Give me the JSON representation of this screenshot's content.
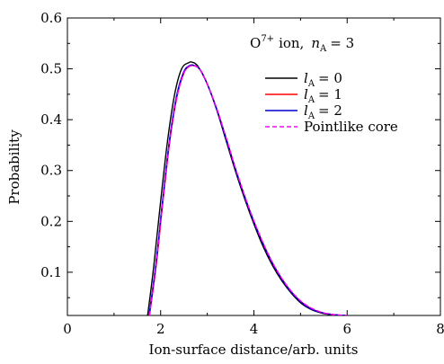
{
  "chart_data": {
    "type": "line",
    "title": "",
    "annotation": {
      "ion": "O",
      "charge": "7+",
      "ion_word": "ion,",
      "n_symbol": "n",
      "n_sub": "A",
      "n_eq": "= 3"
    },
    "xlabel": "Ion-surface distance/arb. units",
    "ylabel": "Probability",
    "xlim": [
      0,
      8
    ],
    "ylim": [
      0.015,
      0.6
    ],
    "x_ticks": [
      0,
      2,
      4,
      6,
      8
    ],
    "x_tick_labels": [
      "0",
      "2",
      "4",
      "6",
      "8"
    ],
    "y_ticks": [
      0.1,
      0.2,
      0.3,
      0.4,
      0.5,
      0.6
    ],
    "y_tick_labels": [
      "0.1",
      "0.2",
      "0.3",
      "0.4",
      "0.5",
      "0.6"
    ],
    "grid": false,
    "legend_position": "top-right",
    "series": [
      {
        "name": "l_A = 0",
        "label_sym": "l",
        "label_sub": "A",
        "label_val": "= 0",
        "color": "#000000",
        "dash": "solid",
        "x": [
          1.72,
          1.85,
          2.0,
          2.15,
          2.3,
          2.45,
          2.6,
          2.68,
          2.8,
          3.0,
          3.2,
          3.4,
          3.6,
          3.8,
          4.0,
          4.2,
          4.4,
          4.6,
          4.8,
          5.0,
          5.2,
          5.4,
          5.6,
          5.8,
          6.0
        ],
        "y": [
          0.015,
          0.11,
          0.24,
          0.36,
          0.45,
          0.5,
          0.512,
          0.513,
          0.505,
          0.47,
          0.42,
          0.36,
          0.3,
          0.245,
          0.195,
          0.15,
          0.113,
          0.083,
          0.059,
          0.04,
          0.028,
          0.021,
          0.017,
          0.015,
          0.015
        ]
      },
      {
        "name": "l_A = 1",
        "label_sym": "l",
        "label_sub": "A",
        "label_val": "= 1",
        "color": "#ff0000",
        "dash": "solid",
        "x": [
          1.76,
          1.9,
          2.05,
          2.2,
          2.35,
          2.5,
          2.62,
          2.72,
          2.85,
          3.0,
          3.2,
          3.4,
          3.6,
          3.8,
          4.0,
          4.2,
          4.4,
          4.6,
          4.8,
          5.0,
          5.2,
          5.4,
          5.6,
          5.8,
          6.0
        ],
        "y": [
          0.015,
          0.11,
          0.24,
          0.36,
          0.445,
          0.492,
          0.505,
          0.506,
          0.498,
          0.47,
          0.422,
          0.365,
          0.305,
          0.25,
          0.2,
          0.156,
          0.118,
          0.087,
          0.062,
          0.043,
          0.03,
          0.022,
          0.018,
          0.016,
          0.015
        ]
      },
      {
        "name": "l_A = 2",
        "label_sym": "l",
        "label_sub": "A",
        "label_val": "= 2",
        "color": "#0000cc",
        "dash": "solid",
        "x": [
          1.75,
          1.89,
          2.04,
          2.19,
          2.34,
          2.49,
          2.61,
          2.71,
          2.84,
          3.0,
          3.2,
          3.4,
          3.6,
          3.8,
          4.0,
          4.2,
          4.4,
          4.6,
          4.8,
          5.0,
          5.2,
          5.4,
          5.6,
          5.8,
          6.0
        ],
        "y": [
          0.015,
          0.11,
          0.24,
          0.36,
          0.446,
          0.493,
          0.506,
          0.507,
          0.499,
          0.47,
          0.421,
          0.364,
          0.304,
          0.249,
          0.199,
          0.155,
          0.117,
          0.086,
          0.061,
          0.042,
          0.029,
          0.022,
          0.018,
          0.016,
          0.015
        ]
      },
      {
        "name": "Pointlike core",
        "label_text": "Pointlike core",
        "color": "#ff00ff",
        "dash": "dashed",
        "x": [
          1.76,
          1.9,
          2.05,
          2.2,
          2.35,
          2.5,
          2.62,
          2.72,
          2.85,
          3.0,
          3.2,
          3.4,
          3.6,
          3.8,
          4.0,
          4.2,
          4.4,
          4.6,
          4.8,
          5.0,
          5.2,
          5.4,
          5.6,
          5.8,
          6.0
        ],
        "y": [
          0.015,
          0.11,
          0.24,
          0.36,
          0.445,
          0.492,
          0.505,
          0.506,
          0.498,
          0.47,
          0.423,
          0.366,
          0.306,
          0.251,
          0.201,
          0.157,
          0.119,
          0.088,
          0.063,
          0.044,
          0.031,
          0.023,
          0.018,
          0.016,
          0.015
        ]
      }
    ]
  }
}
